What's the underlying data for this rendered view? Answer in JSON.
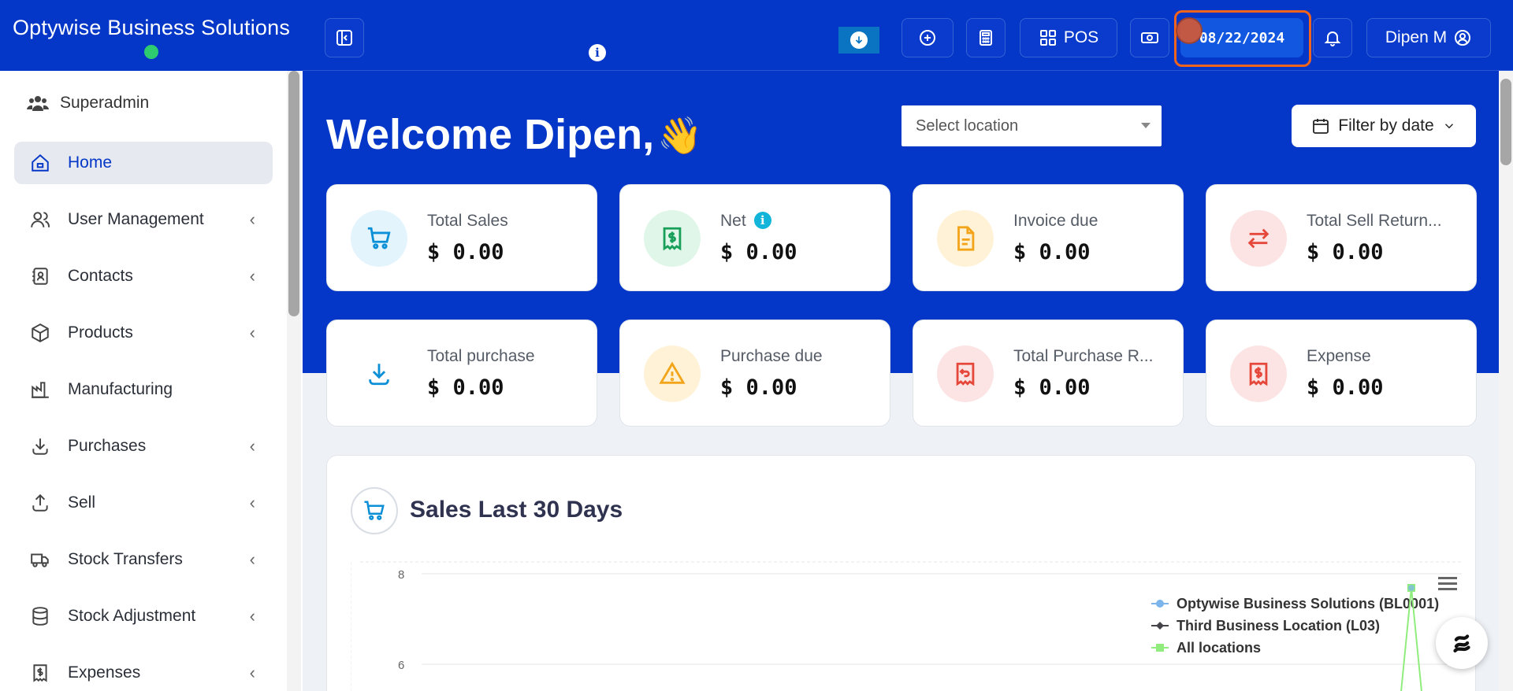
{
  "brand": {
    "name": "Optywise Business Solutions"
  },
  "topbar": {
    "pos_label": "POS",
    "date": "08/22/2024",
    "user_name": "Dipen M"
  },
  "sidebar": {
    "role": "Superadmin",
    "items": [
      {
        "label": "Home",
        "icon": "home-icon",
        "active": true,
        "chevron": false
      },
      {
        "label": "User Management",
        "icon": "users-icon",
        "chevron": true
      },
      {
        "label": "Contacts",
        "icon": "contacts-icon",
        "chevron": true
      },
      {
        "label": "Products",
        "icon": "box-icon",
        "chevron": true
      },
      {
        "label": "Manufacturing",
        "icon": "factory-icon",
        "chevron": false
      },
      {
        "label": "Purchases",
        "icon": "download-icon",
        "chevron": true
      },
      {
        "label": "Sell",
        "icon": "upload-icon",
        "chevron": true
      },
      {
        "label": "Stock Transfers",
        "icon": "truck-icon",
        "chevron": true
      },
      {
        "label": "Stock Adjustment",
        "icon": "database-icon",
        "chevron": true
      },
      {
        "label": "Expenses",
        "icon": "receipt-dollar-icon",
        "chevron": true
      }
    ]
  },
  "main": {
    "welcome": "Welcome Dipen,",
    "location_placeholder": "Select location",
    "filter_label": "Filter by date",
    "cards": [
      {
        "label": "Total Sales",
        "value": "$ 0.00",
        "icon": "cart-icon",
        "bg": "#e3f4fd",
        "color": "#0b8fd6"
      },
      {
        "label": "Net",
        "value": "$ 0.00",
        "icon": "receipt-dollar-icon",
        "bg": "#dff6e8",
        "color": "#18a05a"
      },
      {
        "label": "Invoice due",
        "value": "$ 0.00",
        "icon": "document-icon",
        "bg": "#fff2d6",
        "color": "#f2a51a"
      },
      {
        "label": "Total Sell Return...",
        "value": "$ 0.00",
        "icon": "swap-arrows-icon",
        "bg": "#fde4e4",
        "color": "#e5473a"
      },
      {
        "label": "Total purchase",
        "value": "$ 0.00",
        "icon": "download-icon",
        "bg": "#ffffff",
        "color": "#0b8fd6"
      },
      {
        "label": "Purchase due",
        "value": "$ 0.00",
        "icon": "warning-icon",
        "bg": "#fff2d6",
        "color": "#f2a51a"
      },
      {
        "label": "Total Purchase R...",
        "value": "$ 0.00",
        "icon": "receipt-return-icon",
        "bg": "#fde4e4",
        "color": "#e5473a"
      },
      {
        "label": "Expense",
        "value": "$ 0.00",
        "icon": "receipt-dollar-icon",
        "bg": "#fde4e4",
        "color": "#e5473a"
      }
    ],
    "sales_title": "Sales Last 30 Days"
  },
  "chart_data": {
    "type": "line",
    "title": "Sales Last 30 Days",
    "y_ticks": [
      "8",
      "6"
    ],
    "series": [
      {
        "name": "Optywise Business Solutions (BL0001)",
        "color": "#7cb5ec"
      },
      {
        "name": "Third Business Location (L03)",
        "color": "#434348"
      },
      {
        "name": "All locations",
        "color": "#90ed7d"
      }
    ],
    "legend_position": "top-right"
  }
}
